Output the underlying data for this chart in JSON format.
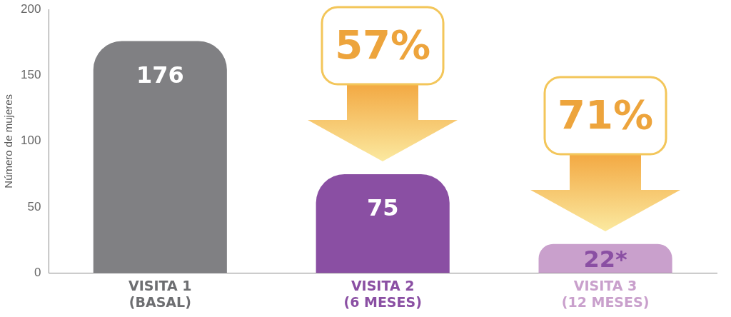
{
  "chart_data": {
    "type": "bar",
    "ylabel": "Número de mujeres",
    "categories": [
      "VISITA 1\n(BASAL)",
      "VISITA 2\n(6 MESES)",
      "VISITA 3\n(12 MESES)"
    ],
    "values": [
      176,
      75,
      22
    ],
    "value_labels": [
      "176",
      "75",
      "22*"
    ],
    "colors": [
      "#808083",
      "#8a4fa3",
      "#c9a0cc"
    ],
    "ylim": [
      0,
      200
    ],
    "yticks": [
      0,
      50,
      100,
      150,
      200
    ],
    "grid": false,
    "legend": false,
    "annotations": [
      "57%",
      "71%"
    ]
  }
}
